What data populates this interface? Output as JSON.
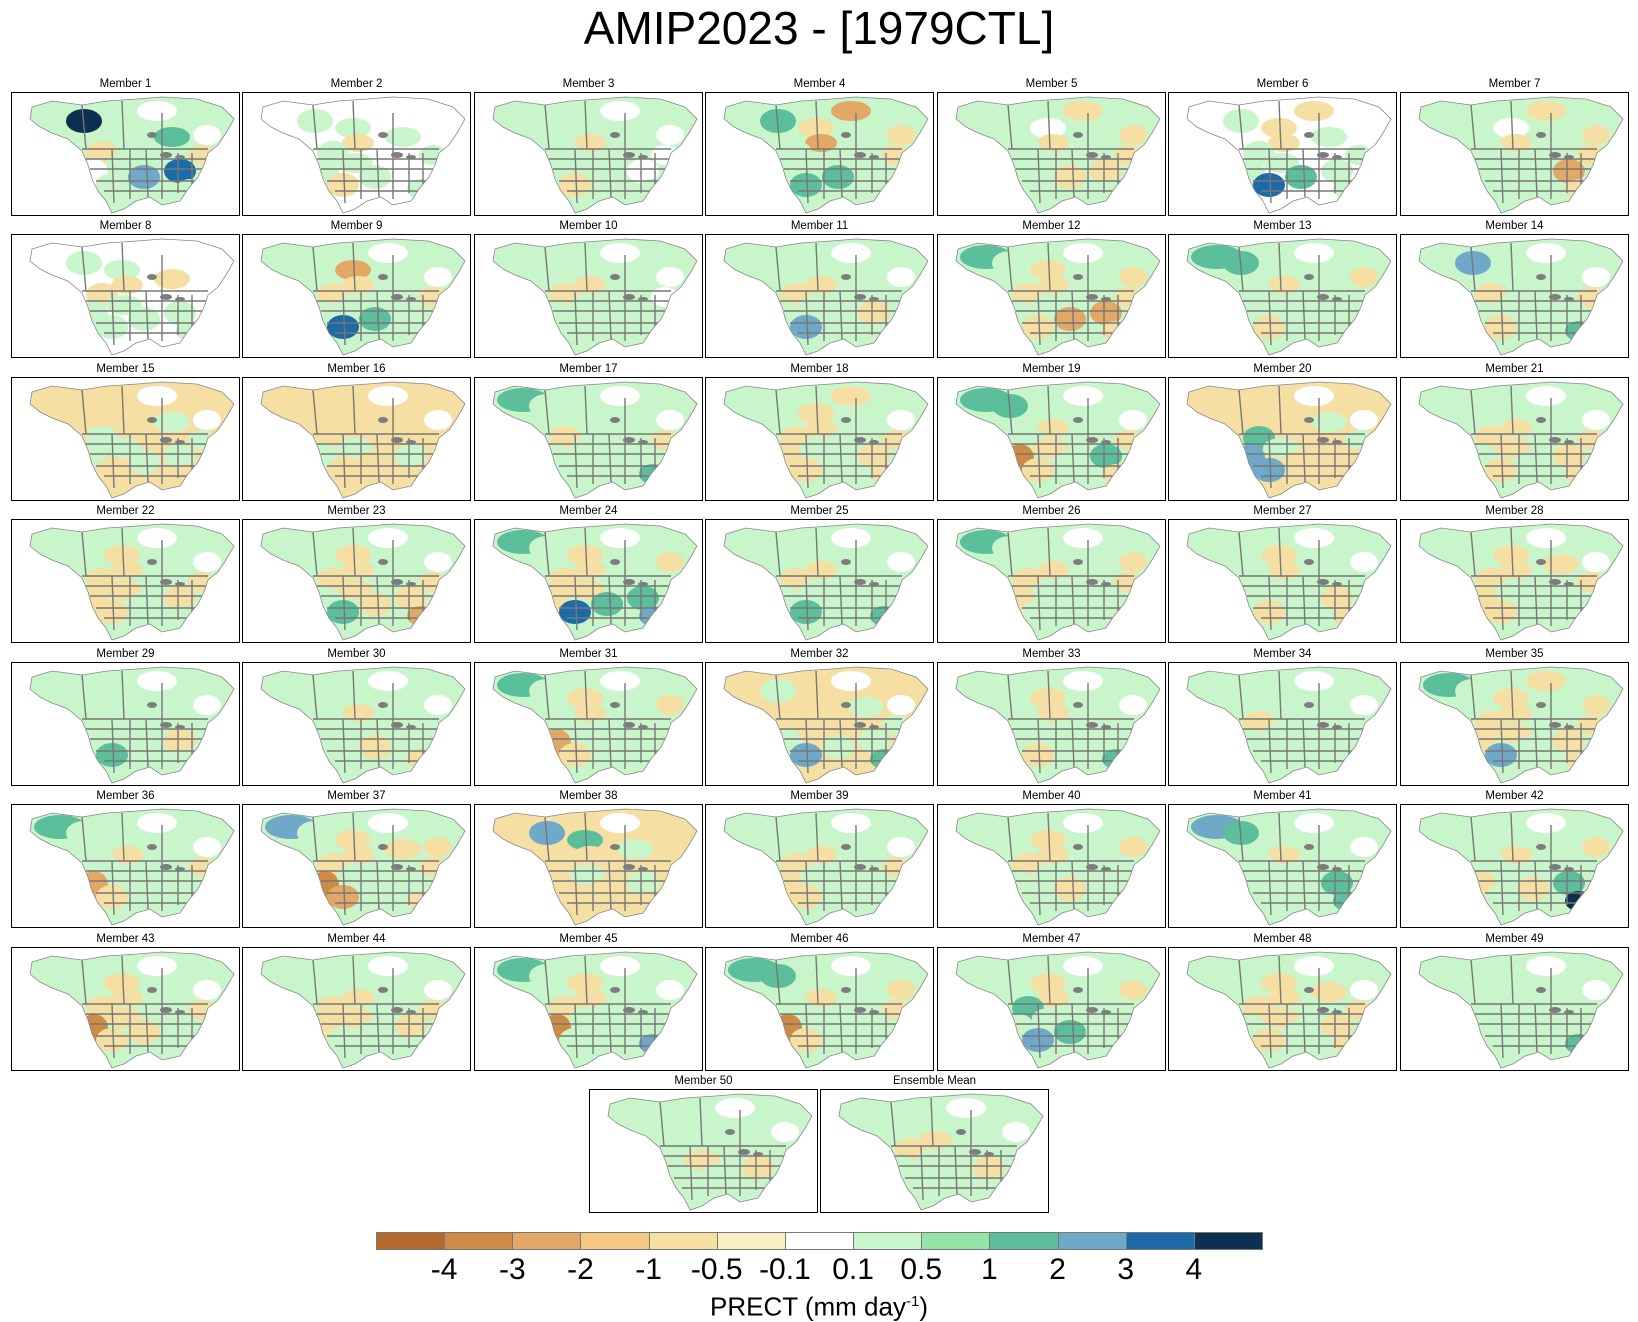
{
  "title": "AMIP2023 - [1979CTL]",
  "panels": [
    {
      "label": "Member 1",
      "pattern": [
        1,
        5,
        1,
        0,
        1,
        2,
        0,
        -1,
        0,
        1,
        1,
        3,
        4,
        1,
        -1
      ]
    },
    {
      "label": "Member 2",
      "pattern": [
        0,
        1,
        1,
        0,
        -1,
        1,
        0,
        1,
        1,
        1,
        -1,
        1,
        0,
        1,
        1
      ]
    },
    {
      "label": "Member 3",
      "pattern": [
        1,
        1,
        1,
        0,
        -1,
        1,
        0,
        1,
        1,
        1,
        -1,
        1,
        0,
        1,
        0
      ]
    },
    {
      "label": "Member 4",
      "pattern": [
        1,
        2,
        -1,
        -2,
        -2,
        1,
        -1,
        1,
        1,
        1,
        2,
        2,
        1,
        1,
        -1
      ]
    },
    {
      "label": "Member 5",
      "pattern": [
        1,
        1,
        0,
        -1,
        -1,
        1,
        -1,
        1,
        1,
        1,
        1,
        -1,
        -1,
        1,
        -1
      ]
    },
    {
      "label": "Member 6",
      "pattern": [
        0,
        1,
        -1,
        -1,
        -1,
        1,
        0,
        1,
        1,
        1,
        4,
        2,
        1,
        1,
        1
      ]
    },
    {
      "label": "Member 7",
      "pattern": [
        1,
        1,
        0,
        -1,
        -1,
        1,
        -1,
        1,
        1,
        1,
        1,
        1,
        -2,
        -1,
        -1
      ]
    },
    {
      "label": "Member 8",
      "pattern": [
        0,
        1,
        1,
        0,
        -1,
        -1,
        0,
        -1,
        1,
        1,
        1,
        1,
        1,
        1,
        0
      ]
    },
    {
      "label": "Member 9",
      "pattern": [
        1,
        1,
        -2,
        0,
        -1,
        1,
        0,
        -1,
        1,
        1,
        4,
        2,
        1,
        1,
        -1
      ]
    },
    {
      "label": "Member 10",
      "pattern": [
        1,
        1,
        1,
        0,
        -1,
        1,
        0,
        -1,
        1,
        1,
        1,
        1,
        1,
        1,
        0
      ]
    },
    {
      "label": "Member 11",
      "pattern": [
        1,
        1,
        1,
        0,
        -1,
        1,
        0,
        -1,
        1,
        1,
        3,
        1,
        -1,
        1,
        1
      ]
    },
    {
      "label": "Member 12",
      "pattern": [
        2,
        1,
        -1,
        0,
        -1,
        1,
        -1,
        -1,
        1,
        1,
        -1,
        -2,
        -2,
        -1,
        -1
      ]
    },
    {
      "label": "Member 13",
      "pattern": [
        2,
        2,
        1,
        0,
        -1,
        1,
        -1,
        1,
        1,
        1,
        -1,
        1,
        1,
        1,
        1
      ]
    },
    {
      "label": "Member 14",
      "pattern": [
        1,
        3,
        1,
        0,
        1,
        1,
        0,
        -1,
        1,
        1,
        -1,
        1,
        1,
        2,
        -1
      ]
    },
    {
      "label": "Member 15",
      "pattern": [
        -1,
        -1,
        -1,
        0,
        -1,
        1,
        0,
        1,
        1,
        1,
        -1,
        1,
        1,
        -1,
        1
      ]
    },
    {
      "label": "Member 16",
      "pattern": [
        -1,
        -1,
        -1,
        0,
        -1,
        -1,
        0,
        -1,
        1,
        1,
        -1,
        -1,
        1,
        -1,
        -1
      ]
    },
    {
      "label": "Member 17",
      "pattern": [
        2,
        1,
        1,
        0,
        1,
        1,
        0,
        -1,
        1,
        1,
        1,
        1,
        1,
        2,
        -1
      ]
    },
    {
      "label": "Member 18",
      "pattern": [
        1,
        1,
        -1,
        -1,
        -1,
        1,
        0,
        -1,
        -1,
        1,
        -1,
        1,
        -1,
        -1,
        -1
      ]
    },
    {
      "label": "Member 19",
      "pattern": [
        2,
        2,
        1,
        0,
        -1,
        1,
        0,
        1,
        -3,
        -1,
        -1,
        1,
        2,
        -1,
        -1
      ]
    },
    {
      "label": "Member 20",
      "pattern": [
        -1,
        -1,
        -1,
        0,
        -1,
        1,
        0,
        2,
        3,
        1,
        3,
        -1,
        -1,
        -1,
        1
      ]
    },
    {
      "label": "Member 21",
      "pattern": [
        1,
        1,
        1,
        0,
        -1,
        1,
        0,
        -1,
        1,
        -1,
        -1,
        1,
        -1,
        -1,
        -1
      ]
    },
    {
      "label": "Member 22",
      "pattern": [
        1,
        1,
        -1,
        0,
        -1,
        1,
        0,
        -1,
        -1,
        -1,
        -1,
        1,
        -1,
        1,
        -1
      ]
    },
    {
      "label": "Member 23",
      "pattern": [
        1,
        1,
        -1,
        0,
        -1,
        1,
        0,
        -1,
        1,
        -1,
        2,
        -1,
        -1,
        -2,
        -1
      ]
    },
    {
      "label": "Member 24",
      "pattern": [
        2,
        1,
        -1,
        0,
        -1,
        1,
        -1,
        -1,
        -1,
        -1,
        4,
        2,
        2,
        3,
        1
      ]
    },
    {
      "label": "Member 25",
      "pattern": [
        1,
        1,
        1,
        0,
        -1,
        1,
        0,
        -1,
        1,
        1,
        2,
        1,
        1,
        2,
        1
      ]
    },
    {
      "label": "Member 26",
      "pattern": [
        2,
        1,
        1,
        0,
        -1,
        1,
        -1,
        -1,
        -1,
        1,
        1,
        1,
        1,
        1,
        -1
      ]
    },
    {
      "label": "Member 27",
      "pattern": [
        1,
        1,
        -1,
        0,
        -1,
        1,
        0,
        1,
        1,
        1,
        -1,
        1,
        -1,
        -1,
        1
      ]
    },
    {
      "label": "Member 28",
      "pattern": [
        1,
        1,
        -1,
        0,
        -1,
        -1,
        0,
        -1,
        -1,
        1,
        -1,
        1,
        1,
        1,
        -1
      ]
    },
    {
      "label": "Member 29",
      "pattern": [
        1,
        1,
        1,
        0,
        1,
        1,
        0,
        1,
        1,
        1,
        2,
        1,
        -1,
        1,
        1
      ]
    },
    {
      "label": "Member 30",
      "pattern": [
        1,
        1,
        1,
        0,
        -1,
        1,
        0,
        1,
        1,
        1,
        1,
        -1,
        1,
        -1,
        1
      ]
    },
    {
      "label": "Member 31",
      "pattern": [
        2,
        1,
        -1,
        0,
        -1,
        1,
        -1,
        1,
        -2,
        1,
        -1,
        1,
        1,
        1,
        1
      ]
    },
    {
      "label": "Member 32",
      "pattern": [
        -1,
        1,
        -1,
        0,
        -1,
        1,
        0,
        -1,
        1,
        -1,
        3,
        1,
        1,
        2,
        1
      ]
    },
    {
      "label": "Member 33",
      "pattern": [
        1,
        1,
        -1,
        0,
        -1,
        1,
        0,
        1,
        1,
        1,
        -1,
        1,
        1,
        2,
        1
      ]
    },
    {
      "label": "Member 34",
      "pattern": [
        1,
        1,
        1,
        0,
        1,
        1,
        0,
        -1,
        1,
        1,
        1,
        1,
        1,
        1,
        1
      ]
    },
    {
      "label": "Member 35",
      "pattern": [
        2,
        1,
        -1,
        -1,
        -1,
        1,
        -1,
        -1,
        -1,
        -1,
        3,
        1,
        -1,
        -1,
        -1
      ]
    },
    {
      "label": "Member 36",
      "pattern": [
        2,
        1,
        1,
        0,
        -1,
        1,
        0,
        1,
        -2,
        1,
        -1,
        1,
        1,
        1,
        -1
      ]
    },
    {
      "label": "Member 37",
      "pattern": [
        3,
        1,
        -1,
        0,
        -1,
        -1,
        -1,
        -1,
        -3,
        1,
        -2,
        1,
        1,
        -1,
        -1
      ]
    },
    {
      "label": "Member 38",
      "pattern": [
        -1,
        3,
        2,
        0,
        -1,
        1,
        -1,
        -1,
        -1,
        1,
        -1,
        -1,
        1,
        -1,
        -1
      ]
    },
    {
      "label": "Member 39",
      "pattern": [
        1,
        1,
        1,
        0,
        -1,
        1,
        0,
        -1,
        -1,
        1,
        -1,
        1,
        1,
        1,
        -1
      ]
    },
    {
      "label": "Member 40",
      "pattern": [
        1,
        1,
        -1,
        0,
        -1,
        1,
        -1,
        -1,
        1,
        1,
        1,
        -1,
        1,
        1,
        1
      ]
    },
    {
      "label": "Member 41",
      "pattern": [
        3,
        2,
        1,
        0,
        -1,
        1,
        0,
        1,
        1,
        1,
        1,
        1,
        2,
        2,
        1
      ]
    },
    {
      "label": "Member 42",
      "pattern": [
        1,
        1,
        1,
        0,
        -1,
        1,
        -1,
        1,
        -1,
        1,
        1,
        -1,
        2,
        5,
        1
      ]
    },
    {
      "label": "Member 43",
      "pattern": [
        1,
        1,
        -1,
        0,
        -1,
        1,
        0,
        -1,
        -3,
        -1,
        -1,
        -1,
        1,
        1,
        -1
      ]
    },
    {
      "label": "Member 44",
      "pattern": [
        1,
        1,
        1,
        0,
        -1,
        1,
        0,
        -1,
        -1,
        -1,
        1,
        1,
        -1,
        1,
        -1
      ]
    },
    {
      "label": "Member 45",
      "pattern": [
        2,
        1,
        -1,
        0,
        -1,
        1,
        0,
        -1,
        -3,
        1,
        1,
        1,
        1,
        3,
        1
      ]
    },
    {
      "label": "Member 46",
      "pattern": [
        2,
        2,
        1,
        0,
        -1,
        1,
        -1,
        1,
        -3,
        1,
        -1,
        1,
        1,
        1,
        -1
      ]
    },
    {
      "label": "Member 47",
      "pattern": [
        1,
        1,
        -1,
        0,
        -1,
        1,
        -1,
        2,
        1,
        1,
        3,
        2,
        1,
        1,
        1
      ]
    },
    {
      "label": "Member 48",
      "pattern": [
        1,
        1,
        -1,
        0,
        -1,
        -1,
        0,
        -1,
        1,
        -1,
        -1,
        1,
        -1,
        -1,
        -1
      ]
    },
    {
      "label": "Member 49",
      "pattern": [
        1,
        1,
        1,
        0,
        1,
        1,
        0,
        1,
        1,
        1,
        1,
        1,
        1,
        2,
        1
      ]
    },
    {
      "label": "Member 50",
      "pattern": [
        1,
        1,
        1,
        0,
        1,
        1,
        0,
        1,
        1,
        -1,
        1,
        1,
        -1,
        1,
        1
      ]
    },
    {
      "label": "Ensemble Mean",
      "pattern": [
        1,
        1,
        1,
        0,
        -1,
        1,
        0,
        -1,
        1,
        1,
        1,
        1,
        -1,
        1,
        1
      ]
    }
  ],
  "colorbar": {
    "colors": [
      "#b5682b",
      "#cf8a45",
      "#e3a866",
      "#f4c982",
      "#f6dfa2",
      "#fbefc4",
      "#ffffff",
      "#c8f5c9",
      "#96e3a9",
      "#5abf9a",
      "#70a8c9",
      "#1c6aa8",
      "#0d3050"
    ],
    "ticks": [
      "-4",
      "-3",
      "-2",
      "-1",
      "-0.5",
      "-0.1",
      "0.1",
      "0.5",
      "1",
      "2",
      "3",
      "4"
    ],
    "label": "PRECT (mm day",
    "label_sup": "-1",
    "label_end": ")"
  }
}
